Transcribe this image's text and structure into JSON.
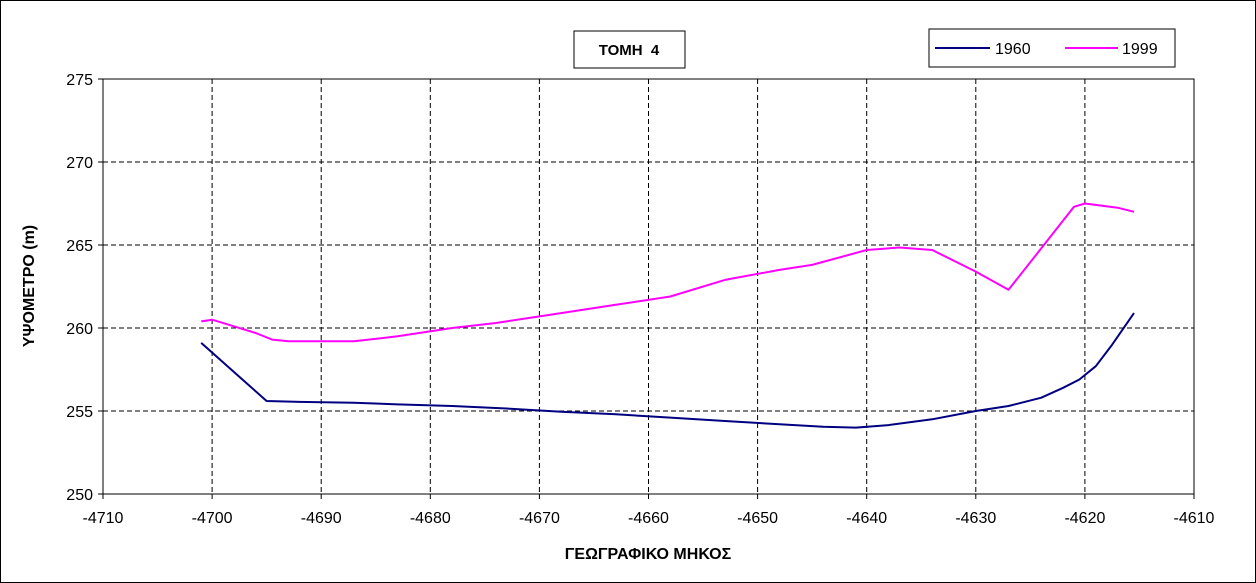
{
  "chart_data": {
    "type": "line",
    "title": "ΤΟΜΗ  4",
    "xlabel": "ΓΕΩΓΡΑΦΙΚΟ ΜΗΚΟΣ",
    "ylabel": "ΥΨΟΜΕΤΡΟ (m)",
    "xlim": [
      -4710,
      -4610
    ],
    "ylim": [
      250,
      275
    ],
    "x_ticks": [
      -4710,
      -4700,
      -4690,
      -4680,
      -4670,
      -4660,
      -4650,
      -4640,
      -4630,
      -4620,
      -4610
    ],
    "y_ticks": [
      250,
      255,
      260,
      265,
      270,
      275
    ],
    "grid": true,
    "legend_position": "top-right",
    "series": [
      {
        "name": "1960",
        "color": "#000080",
        "points": [
          [
            -4701,
            259.1
          ],
          [
            -4695,
            255.6
          ],
          [
            -4692,
            255.55
          ],
          [
            -4687,
            255.5
          ],
          [
            -4683,
            255.4
          ],
          [
            -4678,
            255.3
          ],
          [
            -4673,
            255.15
          ],
          [
            -4668,
            254.95
          ],
          [
            -4663,
            254.8
          ],
          [
            -4658,
            254.6
          ],
          [
            -4653,
            254.4
          ],
          [
            -4648,
            254.2
          ],
          [
            -4644,
            254.05
          ],
          [
            -4641,
            254.0
          ],
          [
            -4638,
            254.15
          ],
          [
            -4634,
            254.5
          ],
          [
            -4630,
            255.0
          ],
          [
            -4627,
            255.3
          ],
          [
            -4624,
            255.8
          ],
          [
            -4622,
            256.4
          ],
          [
            -4620.5,
            256.9
          ],
          [
            -4619,
            257.7
          ],
          [
            -4617.5,
            259.0
          ],
          [
            -4615.5,
            260.9
          ]
        ]
      },
      {
        "name": "1999",
        "color": "#FF00FF",
        "points": [
          [
            -4701,
            260.4
          ],
          [
            -4700,
            260.5
          ],
          [
            -4698,
            260.1
          ],
          [
            -4696,
            259.7
          ],
          [
            -4694.5,
            259.3
          ],
          [
            -4693,
            259.2
          ],
          [
            -4690,
            259.2
          ],
          [
            -4687,
            259.2
          ],
          [
            -4683,
            259.5
          ],
          [
            -4678,
            260.0
          ],
          [
            -4674,
            260.3
          ],
          [
            -4669,
            260.8
          ],
          [
            -4663,
            261.4
          ],
          [
            -4658,
            261.9
          ],
          [
            -4653,
            262.9
          ],
          [
            -4648,
            263.5
          ],
          [
            -4645,
            263.8
          ],
          [
            -4640,
            264.7
          ],
          [
            -4637,
            264.85
          ],
          [
            -4634,
            264.7
          ],
          [
            -4630,
            263.4
          ],
          [
            -4627,
            262.3
          ],
          [
            -4624,
            264.8
          ],
          [
            -4621,
            267.3
          ],
          [
            -4620,
            267.5
          ],
          [
            -4617,
            267.25
          ],
          [
            -4615.5,
            267.0
          ]
        ]
      }
    ]
  }
}
